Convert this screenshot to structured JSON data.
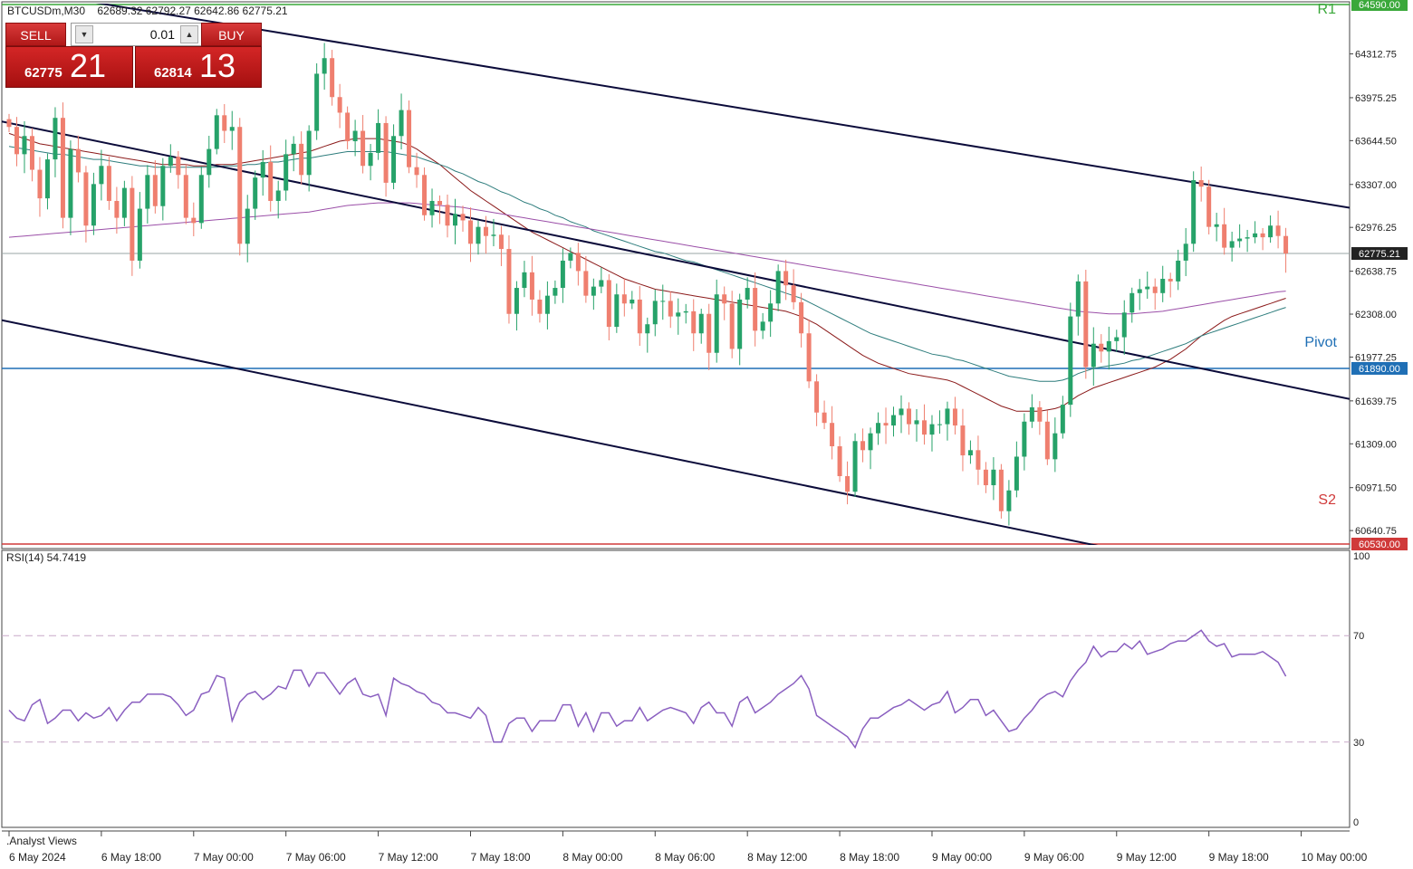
{
  "header": {
    "symbol_line": "BTCUSDm,M30",
    "ohlc": "62689.32 62792.27 62642.86 62775.21"
  },
  "trade_panel": {
    "sell_label": "SELL",
    "buy_label": "BUY",
    "lot": "0.01",
    "sell_price_main": "62775",
    "sell_price_big": "21",
    "buy_price_main": "62814",
    "buy_price_big": "13"
  },
  "colors": {
    "bull": "#26a269",
    "bear": "#ef7f6f",
    "ma_fast": "#8b1a1a",
    "ma_mid": "#2e7d7d",
    "ma_slow": "#9b4fa8",
    "channel": "#0b0b3a",
    "pivot": "#1f6fb5",
    "r1": "#3aa83a",
    "s2": "#d03a3a",
    "rsi": "#8a5fc0"
  },
  "chart_data": {
    "type": "candlestick",
    "timeframe": "M30",
    "ylim": [
      60530,
      64700
    ],
    "y_ticks": [
      64312.75,
      63975.25,
      63644.5,
      63307.0,
      62976.25,
      62638.75,
      62308.0,
      61977.25,
      61639.75,
      61309.0,
      60971.5,
      60640.75
    ],
    "x_tick_labels": [
      "6 May 2024",
      "6 May 18:00",
      "7 May 00:00",
      "7 May 06:00",
      "7 May 12:00",
      "7 May 18:00",
      "8 May 00:00",
      "8 May 06:00",
      "8 May 12:00",
      "8 May 18:00",
      "9 May 00:00",
      "9 May 06:00",
      "9 May 12:00",
      "9 May 18:00",
      "10 May 00:00"
    ],
    "last_price": 62775.21,
    "levels": [
      {
        "name": "R1",
        "value": 64590.0,
        "label": "64590.00"
      },
      {
        "name": "Pivot",
        "value": 61890.0,
        "label": "61890.00"
      },
      {
        "name": "S2",
        "value": 60530.0,
        "label": "60530.00"
      }
    ],
    "current_price_label": "62775.21",
    "closes": [
      63750,
      63540,
      63680,
      63420,
      63200,
      63500,
      63820,
      63050,
      63580,
      63400,
      62990,
      63310,
      63450,
      63180,
      63050,
      63280,
      62720,
      63120,
      63380,
      63140,
      63450,
      63520,
      63380,
      63050,
      63010,
      63380,
      63580,
      63840,
      63720,
      63750,
      62850,
      63120,
      63360,
      63480,
      63180,
      63260,
      63540,
      63620,
      63380,
      63720,
      64160,
      64280,
      63980,
      63860,
      63640,
      63720,
      63450,
      63550,
      63780,
      63320,
      63680,
      63880,
      63440,
      63380,
      63070,
      63180,
      63150,
      62990,
      63080,
      63030,
      62850,
      62980,
      62910,
      62920,
      62810,
      62310,
      62510,
      62630,
      62420,
      62310,
      62450,
      62510,
      62720,
      62780,
      62640,
      62450,
      62520,
      62570,
      62210,
      62460,
      62390,
      62420,
      62160,
      62230,
      62410,
      62410,
      62290,
      62320,
      62330,
      62160,
      62310,
      62010,
      62460,
      62390,
      62040,
      62420,
      62510,
      62180,
      62250,
      62390,
      62640,
      62530,
      62400,
      62160,
      61790,
      61550,
      61470,
      61290,
      61060,
      60940,
      61330,
      61260,
      61390,
      61470,
      61450,
      61530,
      61580,
      61460,
      61490,
      61380,
      61460,
      61460,
      61580,
      61450,
      61220,
      61260,
      61110,
      60990,
      61110,
      60790,
      60950,
      61210,
      61480,
      61590,
      61480,
      61190,
      61390,
      61610,
      62290,
      62560,
      61900,
      62080,
      62020,
      62100,
      62130,
      62320,
      62470,
      62500,
      62520,
      62470,
      62580,
      62560,
      62720,
      62850,
      63340,
      63290,
      62980,
      63000,
      62820,
      62870,
      62890,
      62900,
      62930,
      62900,
      62990,
      62910,
      62775
    ],
    "ma_fast": [
      63700,
      63680,
      63660,
      63640,
      63620,
      63610,
      63600,
      63590,
      63580,
      63570,
      63560,
      63550,
      63540,
      63530,
      63520,
      63510,
      63500,
      63490,
      63480,
      63470,
      63460,
      63460,
      63460,
      63460,
      63450,
      63450,
      63450,
      63460,
      63460,
      63460,
      63470,
      63480,
      63490,
      63500,
      63510,
      63520,
      63530,
      63540,
      63550,
      63560,
      63580,
      63600,
      63620,
      63640,
      63650,
      63660,
      63660,
      63660,
      63660,
      63650,
      63640,
      63630,
      63610,
      63580,
      63540,
      63500,
      63460,
      63410,
      63360,
      63310,
      63260,
      63220,
      63180,
      63140,
      63100,
      63060,
      63020,
      62980,
      62940,
      62910,
      62880,
      62850,
      62820,
      62790,
      62760,
      62730,
      62700,
      62670,
      62640,
      62610,
      62580,
      62560,
      62540,
      62520,
      62500,
      62490,
      62480,
      62470,
      62460,
      62450,
      62440,
      62430,
      62420,
      62410,
      62400,
      62390,
      62380,
      62370,
      62360,
      62350,
      62340,
      62330,
      62310,
      62290,
      62260,
      62230,
      62190,
      62150,
      62110,
      62070,
      62030,
      61990,
      61960,
      61930,
      61910,
      61890,
      61870,
      61850,
      61840,
      61830,
      61820,
      61810,
      61800,
      61780,
      61750,
      61720,
      61690,
      61660,
      61630,
      61600,
      61580,
      61560,
      61560,
      61560,
      61560,
      61570,
      61580,
      61600,
      61640,
      61680,
      61710,
      61740,
      61760,
      61780,
      61800,
      61820,
      61840,
      61860,
      61880,
      61900,
      61930,
      61960,
      62000,
      62040,
      62090,
      62140,
      62180,
      62220,
      62260,
      62290,
      62310,
      62330,
      62350,
      62370,
      62390,
      62410,
      62430
    ],
    "ma_mid": [
      63600,
      63590,
      63580,
      63570,
      63560,
      63550,
      63540,
      63540,
      63530,
      63520,
      63510,
      63500,
      63500,
      63490,
      63480,
      63470,
      63460,
      63450,
      63450,
      63440,
      63440,
      63440,
      63440,
      63440,
      63440,
      63440,
      63440,
      63440,
      63450,
      63450,
      63450,
      63460,
      63460,
      63470,
      63480,
      63480,
      63490,
      63500,
      63510,
      63510,
      63520,
      63530,
      63540,
      63550,
      63560,
      63560,
      63560,
      63560,
      63560,
      63560,
      63550,
      63540,
      63530,
      63520,
      63500,
      63480,
      63460,
      63440,
      63410,
      63390,
      63360,
      63330,
      63310,
      63280,
      63250,
      63230,
      63200,
      63170,
      63150,
      63120,
      63100,
      63070,
      63050,
      63020,
      63000,
      62980,
      62950,
      62930,
      62910,
      62890,
      62870,
      62850,
      62830,
      62810,
      62790,
      62780,
      62760,
      62740,
      62720,
      62710,
      62690,
      62670,
      62650,
      62630,
      62610,
      62590,
      62570,
      62550,
      62530,
      62510,
      62490,
      62470,
      62450,
      62430,
      62400,
      62370,
      62340,
      62310,
      62280,
      62250,
      62220,
      62190,
      62160,
      62140,
      62120,
      62100,
      62080,
      62060,
      62040,
      62020,
      62000,
      61990,
      61980,
      61960,
      61950,
      61930,
      61910,
      61890,
      61870,
      61850,
      61830,
      61820,
      61810,
      61800,
      61790,
      61790,
      61790,
      61800,
      61820,
      61850,
      61870,
      61890,
      61900,
      61910,
      61920,
      61930,
      61950,
      61960,
      61980,
      62000,
      62020,
      62040,
      62060,
      62080,
      62110,
      62140,
      62160,
      62180,
      62200,
      62220,
      62240,
      62260,
      62280,
      62300,
      62320,
      62340,
      62360
    ],
    "ma_slow": [
      62900,
      62905,
      62910,
      62915,
      62920,
      62925,
      62930,
      62935,
      62940,
      62945,
      62950,
      62955,
      62960,
      62965,
      62970,
      62975,
      62980,
      62985,
      62990,
      62995,
      63000,
      63005,
      63010,
      63015,
      63020,
      63025,
      63030,
      63035,
      63040,
      63045,
      63050,
      63055,
      63060,
      63065,
      63070,
      63075,
      63080,
      63085,
      63090,
      63095,
      63105,
      63115,
      63125,
      63135,
      63145,
      63150,
      63155,
      63160,
      63165,
      63165,
      63165,
      63165,
      63165,
      63160,
      63155,
      63150,
      63145,
      63140,
      63135,
      63130,
      63120,
      63110,
      63100,
      63090,
      63080,
      63070,
      63060,
      63050,
      63040,
      63030,
      63020,
      63010,
      63000,
      62990,
      62980,
      62970,
      62960,
      62950,
      62940,
      62930,
      62920,
      62910,
      62900,
      62890,
      62880,
      62870,
      62860,
      62850,
      62840,
      62830,
      62820,
      62810,
      62800,
      62790,
      62780,
      62770,
      62760,
      62750,
      62740,
      62730,
      62720,
      62710,
      62700,
      62690,
      62680,
      62670,
      62660,
      62650,
      62640,
      62630,
      62620,
      62610,
      62600,
      62590,
      62580,
      62570,
      62560,
      62550,
      62540,
      62530,
      62520,
      62510,
      62500,
      62490,
      62480,
      62470,
      62460,
      62450,
      62440,
      62430,
      62420,
      62410,
      62400,
      62390,
      62380,
      62370,
      62360,
      62350,
      62340,
      62330,
      62325,
      62320,
      62315,
      62310,
      62310,
      62310,
      62310,
      62315,
      62320,
      62325,
      62330,
      62340,
      62350,
      62360,
      62370,
      62380,
      62390,
      62400,
      62410,
      62420,
      62430,
      62440,
      62450,
      62460,
      62470,
      62480,
      62485
    ],
    "channels": [
      {
        "p1": [
          "6 May 2024",
          63780
        ],
        "p2": [
          "10 May 02:30",
          61670
        ]
      },
      {
        "p1": [
          "6 May 2024",
          62250
        ],
        "p2": [
          "9 May 10:30",
          60530
        ]
      },
      {
        "p1": [
          "6 May 18:00",
          64700
        ],
        "p2": [
          "10 May 02:30",
          63140
        ]
      }
    ],
    "rsi": {
      "label": "RSI(14) 54.7419",
      "period": 14,
      "last": 54.7419,
      "ylim": [
        0,
        100
      ],
      "ticks": [
        100,
        70,
        30,
        0
      ],
      "levels": [
        70,
        30
      ],
      "values": [
        42,
        39,
        38,
        44,
        46,
        37,
        39,
        42,
        42,
        38,
        41,
        39,
        40,
        43,
        38,
        42,
        45,
        45,
        48,
        48,
        48,
        47,
        44,
        40,
        42,
        48,
        49,
        55,
        54,
        38,
        45,
        48,
        49,
        46,
        48,
        51,
        50,
        57,
        57,
        51,
        56,
        56,
        52,
        48,
        52,
        54,
        48,
        47,
        48,
        40,
        54,
        52,
        51,
        49,
        48,
        45,
        44,
        41,
        41,
        40,
        39,
        43,
        40,
        30,
        30,
        37,
        39,
        39,
        34,
        38,
        38,
        38,
        44,
        44,
        36,
        41,
        34,
        41,
        41,
        36,
        38,
        38,
        43,
        38,
        40,
        42,
        43,
        42,
        41,
        37,
        43,
        45,
        41,
        41,
        36,
        45,
        47,
        41,
        43,
        45,
        48,
        50,
        52,
        55,
        50,
        40,
        38,
        36,
        34,
        32,
        28,
        35,
        39,
        39,
        41,
        43,
        44,
        46,
        44,
        42,
        44,
        45,
        49,
        41,
        43,
        46,
        46,
        40,
        42,
        38,
        34,
        35,
        39,
        42,
        46,
        48,
        49,
        47,
        53,
        57,
        60,
        66,
        62,
        64,
        64,
        67,
        65,
        68,
        63,
        64,
        65,
        67,
        68,
        68,
        70,
        72,
        68,
        66,
        67,
        62,
        63,
        63,
        63,
        64,
        62,
        60,
        54.7419
      ]
    },
    "bottom_label": ".Analyst Views"
  }
}
